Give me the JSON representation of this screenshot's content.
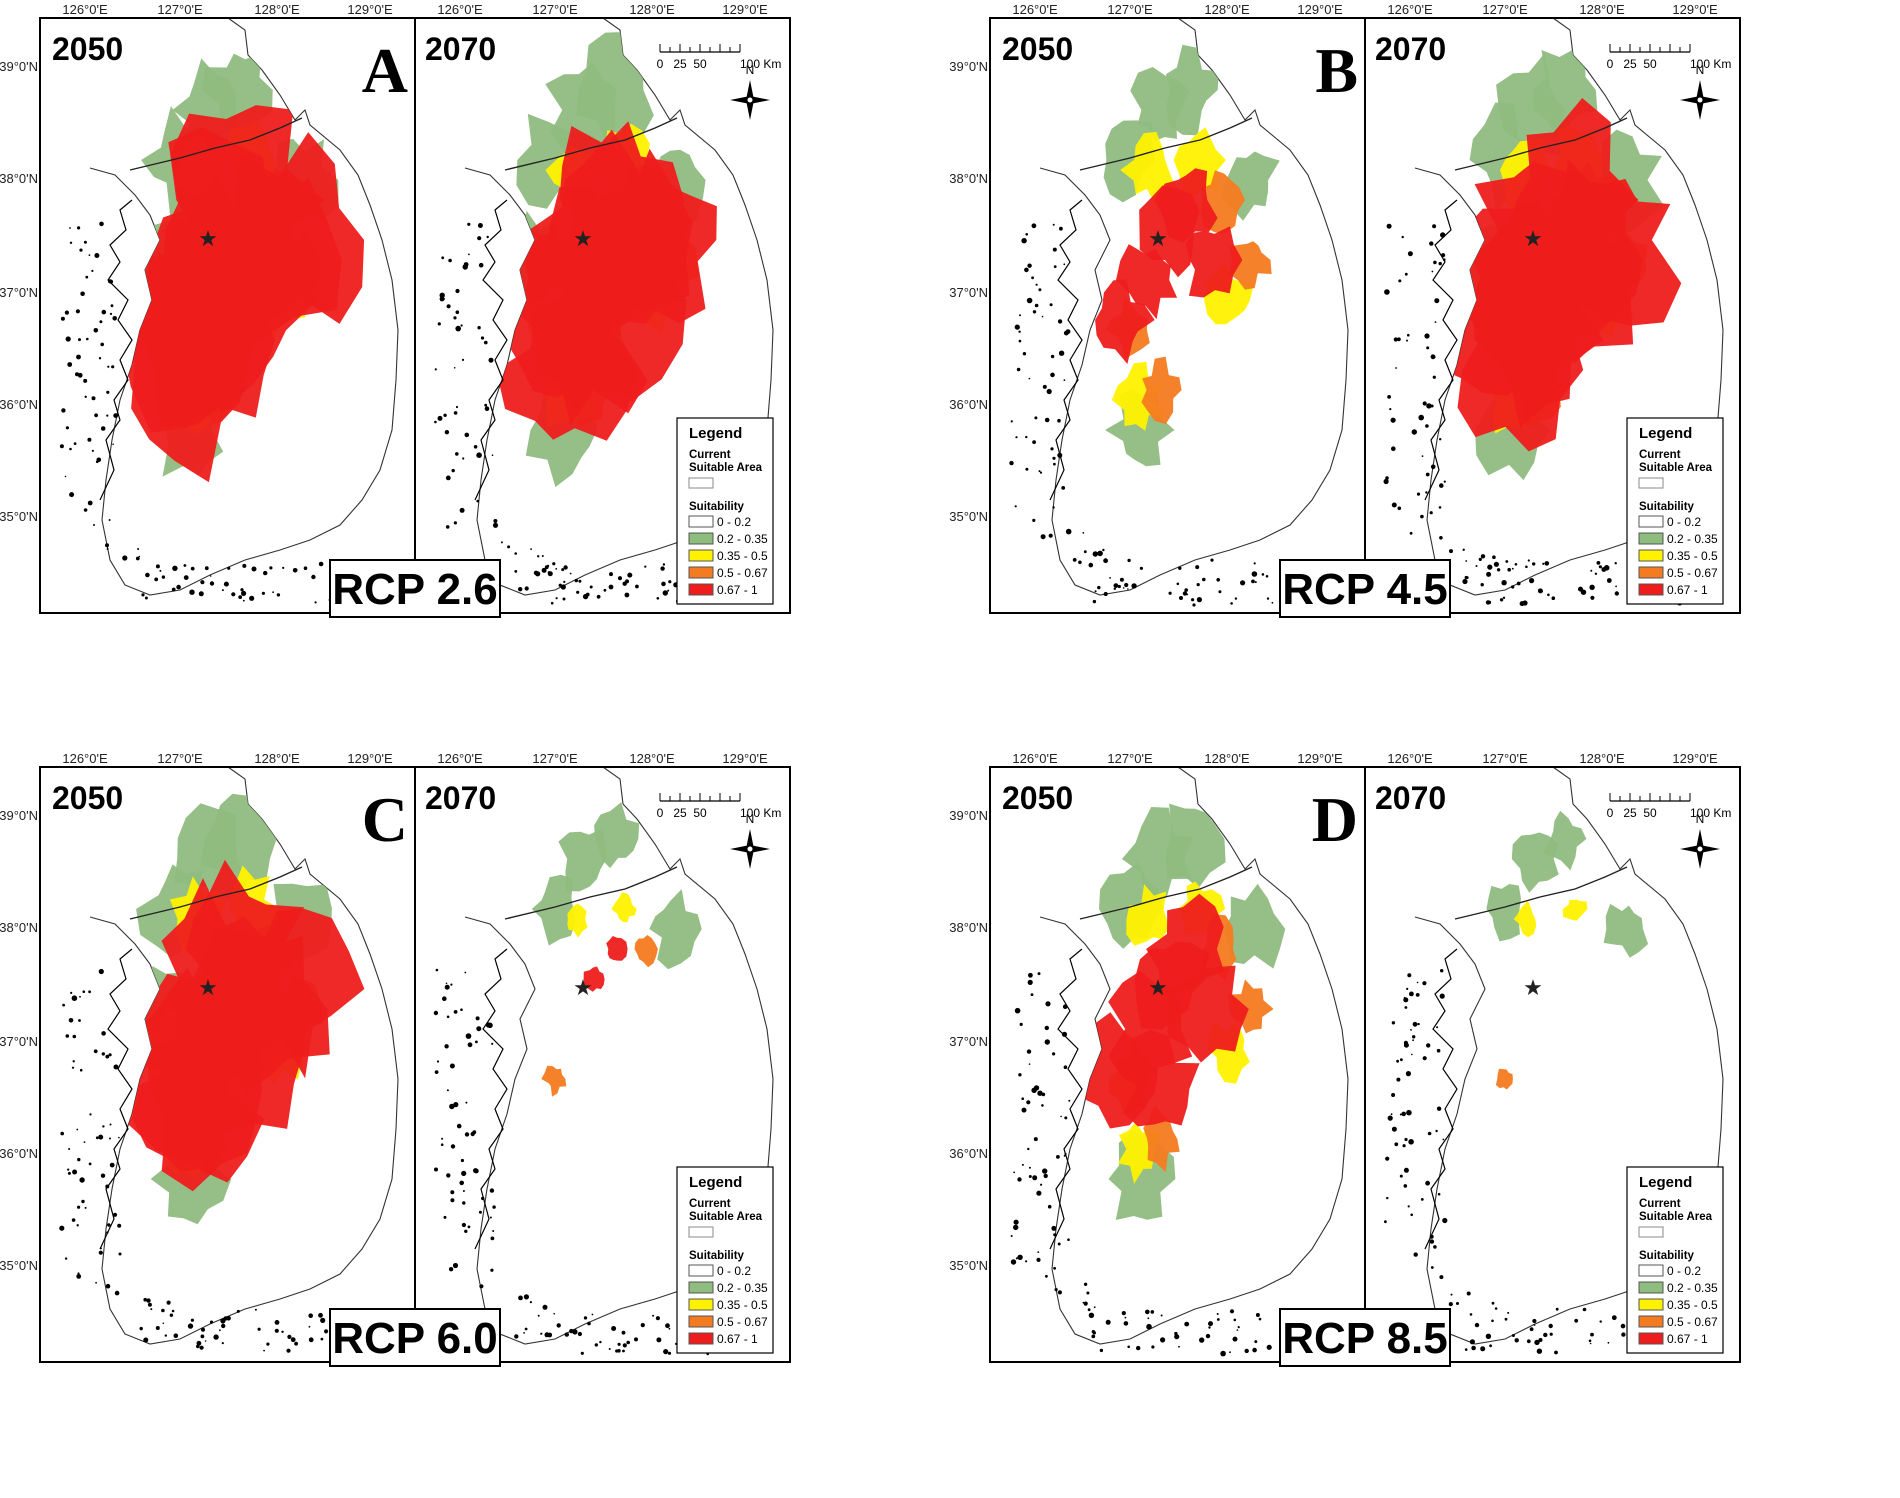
{
  "longitude_labels": [
    "126°0'E",
    "127°0'E",
    "128°0'E",
    "129°0'E"
  ],
  "latitude_labels": [
    "39°0'N",
    "38°0'N",
    "37°0'N",
    "36°0'N",
    "35°0'N"
  ],
  "scale_bar": {
    "ticks": [
      "0",
      "25",
      "50",
      "100 Km"
    ]
  },
  "north_arrow_label": "N",
  "legend": {
    "title": "Legend",
    "current_label_line1": "Current",
    "current_label_line2": "Suitable Area",
    "suitability_title": "Suitability",
    "classes": [
      {
        "label": "0 - 0.2",
        "color": "#ffffff"
      },
      {
        "label": "0.2 - 0.35",
        "color": "#8fbc7f"
      },
      {
        "label": "0.35 - 0.5",
        "color": "#fff200"
      },
      {
        "label": "0.5 - 0.67",
        "color": "#f47b20"
      },
      {
        "label": "0.67 - 1",
        "color": "#ee1c1c"
      }
    ]
  },
  "star_marker": "★",
  "panels": [
    {
      "letter": "A",
      "scenario": "RCP 2.6",
      "left_year": "2050",
      "right_year": "2070",
      "left_levels": {
        "red": 1.0,
        "orange": 0.5,
        "yellow": 0.6,
        "green": 0.8
      },
      "right_levels": {
        "red": 0.9,
        "orange": 0.6,
        "yellow": 0.6,
        "green": 0.8
      }
    },
    {
      "letter": "B",
      "scenario": "RCP 4.5",
      "left_year": "2050",
      "right_year": "2070",
      "left_levels": {
        "red": 0.35,
        "orange": 0.5,
        "yellow": 0.6,
        "green": 0.6
      },
      "right_levels": {
        "red": 0.9,
        "orange": 0.6,
        "yellow": 0.7,
        "green": 0.8
      }
    },
    {
      "letter": "C",
      "scenario": "RCP 6.0",
      "left_year": "2050",
      "right_year": "2070",
      "left_levels": {
        "red": 0.9,
        "orange": 0.5,
        "yellow": 0.7,
        "green": 0.8
      },
      "right_levels": {
        "red": 0.05,
        "orange": 0.15,
        "yellow": 0.15,
        "green": 0.5
      }
    },
    {
      "letter": "D",
      "scenario": "RCP 8.5",
      "left_year": "2050",
      "right_year": "2070",
      "left_levels": {
        "red": 0.5,
        "orange": 0.5,
        "yellow": 0.5,
        "green": 0.7
      },
      "right_levels": {
        "red": 0.0,
        "orange": 0.05,
        "yellow": 0.15,
        "green": 0.4
      }
    }
  ]
}
